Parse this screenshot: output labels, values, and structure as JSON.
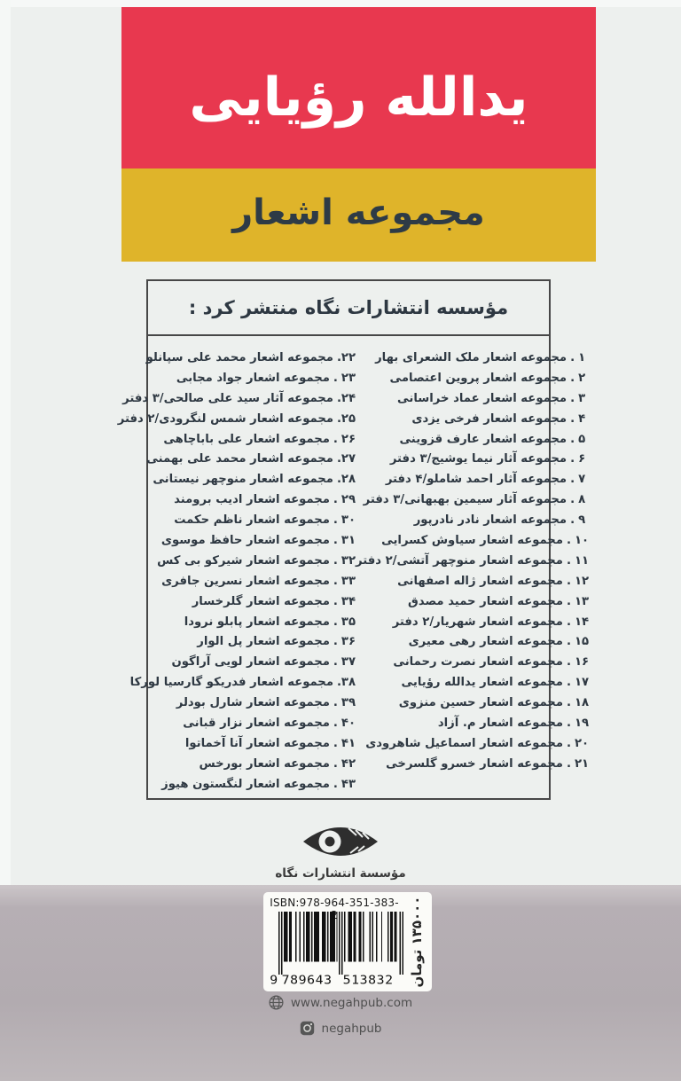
{
  "cover": {
    "author": "یدالله رؤیایی",
    "subtitle": "مجموعه اشعار",
    "publisher_header": "مؤسسه انتشارات نگاه منتشر کرد :",
    "publisher_name": "مؤسسة انتشارات نگاه",
    "isbn_label": "ISBN:978-964-351-383-2",
    "barcode_left": "9",
    "barcode_mid": "789643",
    "barcode_right": "513832",
    "barcode_value": "9789643513832",
    "price": "۱۳۵۰۰۰ تومان",
    "website": "www.negahpub.com",
    "instagram": "negahpub"
  },
  "colors": {
    "banner_red": "#e8384f",
    "banner_yellow": "#dfb42a",
    "ink": "#2e3842",
    "bottom_band": "#b2abb0",
    "label_bg": "#fbfbf8"
  },
  "icons": {
    "logo": "negah-eye-logo",
    "globe": "globe-icon",
    "instagram": "instagram-icon"
  },
  "lists": {
    "separator": ".",
    "right": [
      {
        "n": "۱",
        "t": "مجموعه اشعار ملک الشعرای بهار"
      },
      {
        "n": "۲",
        "t": "مجموعه اشعار پروین اعتصامی"
      },
      {
        "n": "۳",
        "t": "مجموعه اشعار عماد خراسانی"
      },
      {
        "n": "۴",
        "t": "مجموعه اشعار فرخی یزدی"
      },
      {
        "n": "۵",
        "t": "مجموعه اشعار عارف قزوینی"
      },
      {
        "n": "۶",
        "t": "مجموعه آثار نیما یوشیج/۳ دفتر"
      },
      {
        "n": "۷",
        "t": "مجموعه آثار احمد شاملو/۴ دفتر"
      },
      {
        "n": "۸",
        "t": "مجموعه آثار سیمین بهبهانی/۳ دفتر"
      },
      {
        "n": "۹",
        "t": "مجموعه اشعار نادر نادرپور"
      },
      {
        "n": "۱۰",
        "t": "مجموعه اشعار سیاوش کسرایی"
      },
      {
        "n": "۱۱",
        "t": "مجموعه اشعار منوچهر آتشی/۲ دفتر"
      },
      {
        "n": "۱۲",
        "t": "مجموعه اشعار ژاله اصفهانی"
      },
      {
        "n": "۱۳",
        "t": "مجموعه اشعار حمید مصدق"
      },
      {
        "n": "۱۴",
        "t": "مجموعه اشعار شهریار/۲ دفتر"
      },
      {
        "n": "۱۵",
        "t": "مجموعه اشعار رهی معیری"
      },
      {
        "n": "۱۶",
        "t": "مجموعه اشعار نصرت رحمانی"
      },
      {
        "n": "۱۷",
        "t": "مجموعه اشعار یدالله رؤیایی"
      },
      {
        "n": "۱۸",
        "t": "مجموعه اشعار حسین منزوی"
      },
      {
        "n": "۱۹",
        "t": "مجموعه اشعار م. آزاد"
      },
      {
        "n": "۲۰",
        "t": "مجموعه اشعار اسماعیل شاهرودی"
      },
      {
        "n": "۲۱",
        "t": "مجموعه اشعار خسرو گلسرخی"
      }
    ],
    "left": [
      {
        "n": "۲۲",
        "t": "مجموعه اشعار محمد علی سپانلو"
      },
      {
        "n": "۲۳",
        "t": "مجموعه اشعار جواد مجابی"
      },
      {
        "n": "۲۴",
        "t": "مجموعه آثار سید علی صالحی/۳ دفتر"
      },
      {
        "n": "۲۵",
        "t": "مجموعه اشعار شمس لنگرودی/۲ دفتر"
      },
      {
        "n": "۲۶",
        "t": "مجموعه اشعار علی باباچاهی"
      },
      {
        "n": "۲۷",
        "t": "مجموعه اشعار محمد علی بهمنی"
      },
      {
        "n": "۲۸",
        "t": "مجموعه اشعار منوچهر نیستانی"
      },
      {
        "n": "۲۹",
        "t": "مجموعه اشعار ادیب برومند"
      },
      {
        "n": "۳۰",
        "t": "مجموعه اشعار ناظم حکمت"
      },
      {
        "n": "۳۱",
        "t": "مجموعه اشعار حافظ موسوی"
      },
      {
        "n": "۳۲",
        "t": "مجموعه اشعار شیرکو بی کس"
      },
      {
        "n": "۳۳",
        "t": "مجموعه اشعار نسرین جافری"
      },
      {
        "n": "۳۴",
        "t": "مجموعه اشعار گلرخسار"
      },
      {
        "n": "۳۵",
        "t": "مجموعه اشعار پابلو نرودا"
      },
      {
        "n": "۳۶",
        "t": "مجموعه اشعار پل الوار"
      },
      {
        "n": "۳۷",
        "t": "مجموعه اشعار لویی آراگون"
      },
      {
        "n": "۳۸",
        "t": "مجموعه اشعار فدریکو گارسیا لورکا"
      },
      {
        "n": "۳۹",
        "t": "مجموعه اشعار شارل بودلر"
      },
      {
        "n": "۴۰",
        "t": "مجموعه اشعار نزار قبانی"
      },
      {
        "n": "۴۱",
        "t": "مجموعه اشعار آنا آخماتوا"
      },
      {
        "n": "۴۲",
        "t": "مجموعه اشعار بورخس"
      },
      {
        "n": "۴۳",
        "t": "مجموعه اشعار لنگستون هیوز"
      }
    ]
  }
}
